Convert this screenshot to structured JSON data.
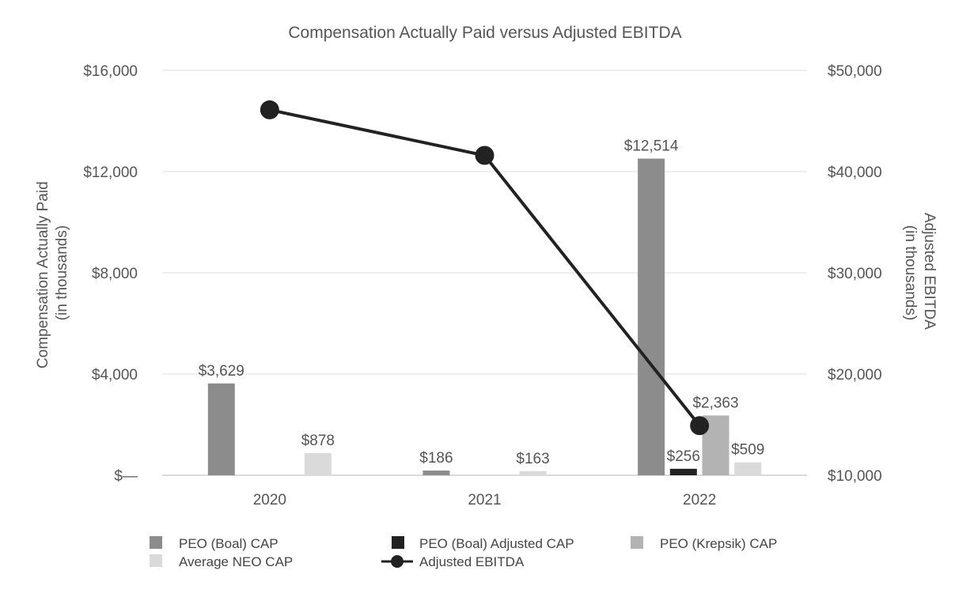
{
  "chart_data": {
    "type": "bar",
    "title": "Compensation Actually Paid versus Adjusted EBITDA",
    "categories": [
      "2020",
      "2021",
      "2022"
    ],
    "ylabel_left": [
      "Compensation Actually Paid",
      "(in thousands)"
    ],
    "ylabel_right": [
      "Adjusted EBITDA",
      "(in thousands)"
    ],
    "ylim_left": [
      0,
      16000
    ],
    "ylim_right": [
      10000,
      50000
    ],
    "yticks_left": [
      "$—",
      "$4,000",
      "$8,000",
      "$12,000",
      "$16,000"
    ],
    "yticks_right": [
      "$10,000",
      "$20,000",
      "$30,000",
      "$40,000",
      "$50,000"
    ],
    "grid": true,
    "legend_position": "bottom",
    "series": [
      {
        "name": "PEO (Boal) CAP",
        "type": "bar",
        "axis": "left",
        "color": "#8c8c8c",
        "values": [
          3629,
          186,
          12514
        ],
        "labels": [
          "$3,629",
          "$186",
          "$12,514"
        ]
      },
      {
        "name": "PEO (Boal) Adjusted CAP",
        "type": "bar",
        "axis": "left",
        "color": "#222222",
        "values": [
          null,
          null,
          256
        ],
        "labels": [
          "",
          "",
          "$256"
        ]
      },
      {
        "name": "PEO (Krepsik) CAP",
        "type": "bar",
        "axis": "left",
        "color": "#b3b3b3",
        "values": [
          null,
          null,
          2363
        ],
        "labels": [
          "",
          "",
          "$2,363"
        ]
      },
      {
        "name": "Average NEO CAP",
        "type": "bar",
        "axis": "left",
        "color": "#dadada",
        "values": [
          878,
          163,
          509
        ],
        "labels": [
          "$878",
          "$163",
          "$509"
        ]
      },
      {
        "name": "Adjusted EBITDA",
        "type": "line",
        "axis": "right",
        "color": "#222222",
        "values": [
          46100,
          41600,
          14900
        ]
      }
    ]
  }
}
